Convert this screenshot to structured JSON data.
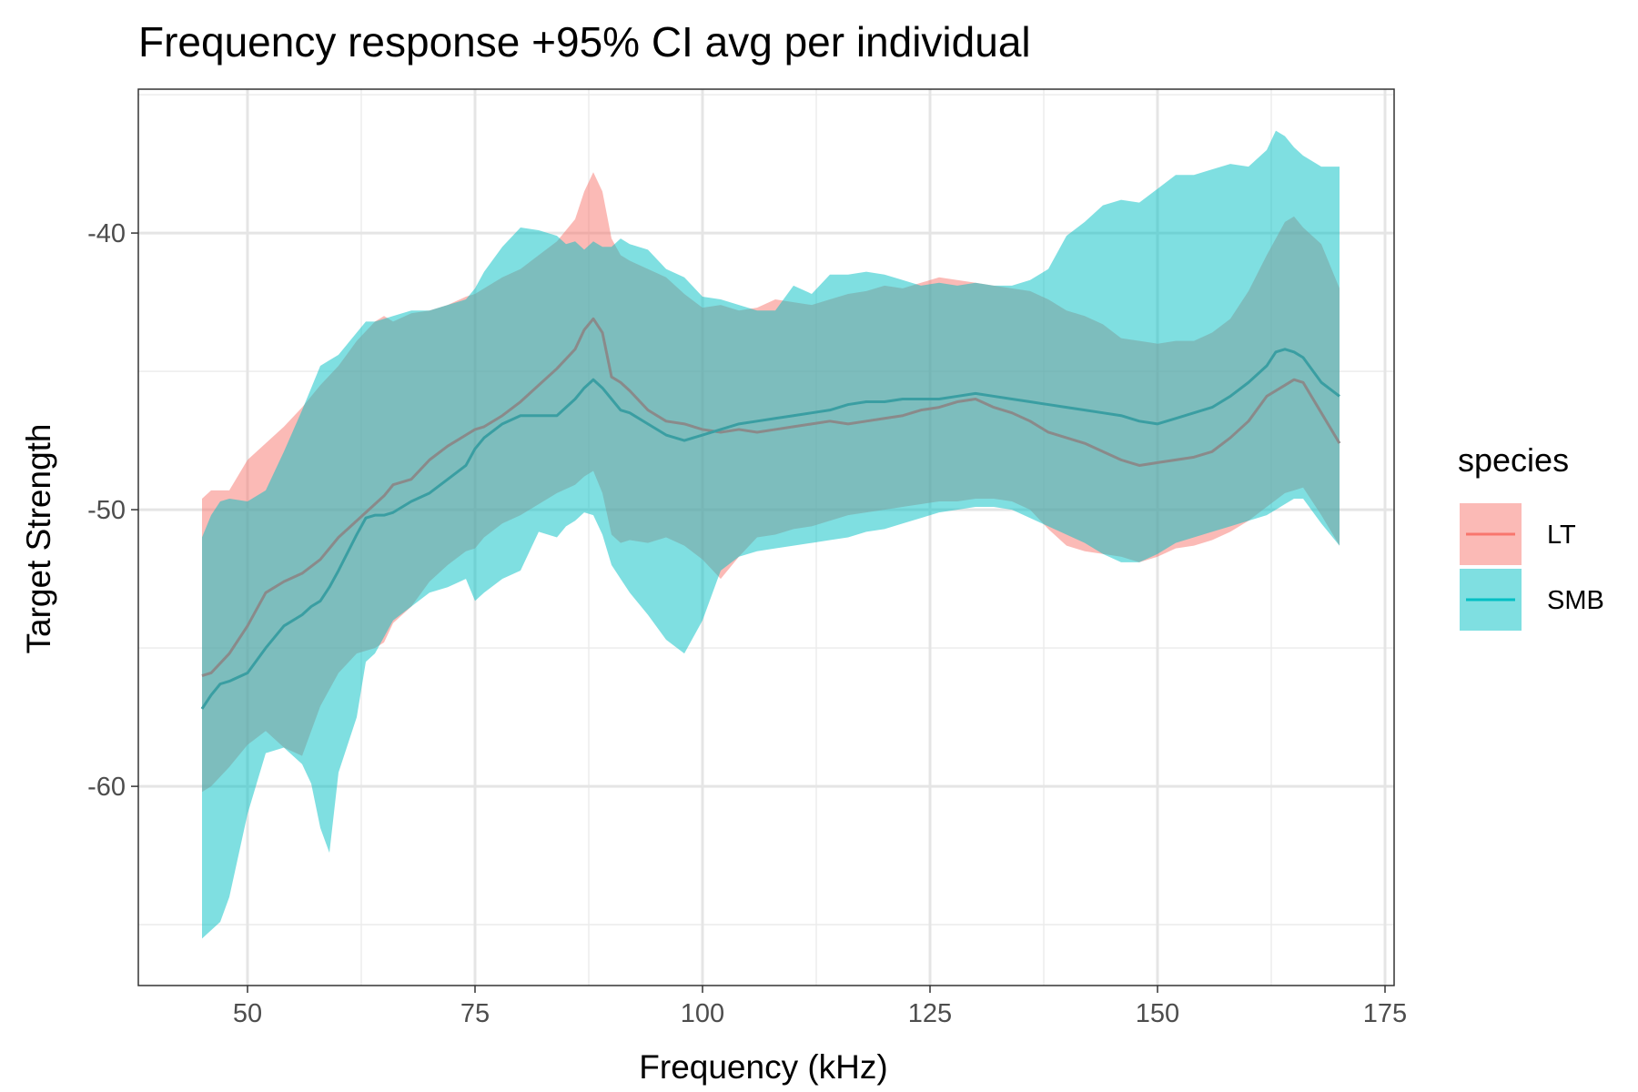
{
  "chart_data": {
    "type": "area",
    "title": "Frequency response +95% CI avg per individual",
    "xlabel": "Frequency (kHz)",
    "ylabel": "Target Strength",
    "xlim": [
      38,
      176
    ],
    "ylim": [
      -67.2,
      -34.8
    ],
    "x_ticks": [
      50,
      75,
      100,
      125,
      150,
      175
    ],
    "y_ticks": [
      -40,
      -50,
      -60
    ],
    "x_tick_labels": [
      "50",
      "75",
      "100",
      "125",
      "150",
      "175"
    ],
    "y_tick_labels": [
      "-40",
      "-50",
      "-60"
    ],
    "grid": true,
    "legend_position": "right",
    "legend": {
      "title": "species",
      "entries": [
        {
          "label": "LT",
          "fill": "#F8766D",
          "line": "#F8766D"
        },
        {
          "label": "SMB",
          "fill": "#00BFC4",
          "line": "#00BFC4"
        }
      ]
    },
    "series": [
      {
        "name": "LT",
        "color": "#F8766D",
        "x": [
          45,
          46,
          48,
          50,
          52,
          54,
          56,
          58,
          60,
          62,
          64,
          65,
          66,
          68,
          70,
          72,
          74,
          75,
          76,
          78,
          80,
          82,
          84,
          86,
          87,
          88,
          89,
          90,
          91,
          92,
          94,
          96,
          98,
          100,
          102,
          104,
          106,
          108,
          110,
          112,
          114,
          116,
          118,
          120,
          122,
          124,
          126,
          128,
          130,
          132,
          134,
          136,
          138,
          140,
          142,
          144,
          146,
          148,
          150,
          152,
          154,
          156,
          158,
          160,
          162,
          164,
          165,
          166,
          168,
          170
        ],
        "mean": [
          -56.0,
          -55.9,
          -55.2,
          -54.2,
          -53.0,
          -52.6,
          -52.3,
          -51.8,
          -51.0,
          -50.4,
          -49.8,
          -49.5,
          -49.1,
          -48.9,
          -48.2,
          -47.7,
          -47.3,
          -47.1,
          -47.0,
          -46.6,
          -46.1,
          -45.5,
          -44.9,
          -44.2,
          -43.5,
          -43.1,
          -43.6,
          -45.2,
          -45.4,
          -45.7,
          -46.4,
          -46.8,
          -46.9,
          -47.1,
          -47.2,
          -47.1,
          -47.2,
          -47.1,
          -47.0,
          -46.9,
          -46.8,
          -46.9,
          -46.8,
          -46.7,
          -46.6,
          -46.4,
          -46.3,
          -46.1,
          -46.0,
          -46.3,
          -46.5,
          -46.8,
          -47.2,
          -47.4,
          -47.6,
          -47.9,
          -48.2,
          -48.4,
          -48.3,
          -48.2,
          -48.1,
          -47.9,
          -47.4,
          -46.8,
          -45.9,
          -45.5,
          -45.3,
          -45.4,
          -46.5,
          -47.6
        ],
        "upper": [
          -49.6,
          -49.3,
          -49.3,
          -48.2,
          -47.6,
          -47.0,
          -46.3,
          -45.5,
          -44.8,
          -43.9,
          -43.2,
          -43.0,
          -43.2,
          -42.9,
          -42.8,
          -42.6,
          -42.3,
          -42.2,
          -42.0,
          -41.6,
          -41.3,
          -40.8,
          -40.3,
          -39.5,
          -38.5,
          -37.8,
          -38.5,
          -40.2,
          -40.8,
          -41.0,
          -41.3,
          -41.6,
          -42.2,
          -42.7,
          -42.6,
          -42.8,
          -42.7,
          -42.4,
          -42.5,
          -42.6,
          -42.4,
          -42.2,
          -42.1,
          -41.9,
          -42.0,
          -41.8,
          -41.6,
          -41.7,
          -41.8,
          -41.9,
          -42.0,
          -42.1,
          -42.4,
          -42.8,
          -43.0,
          -43.3,
          -43.8,
          -43.9,
          -44.0,
          -43.9,
          -43.9,
          -43.6,
          -43.1,
          -42.1,
          -40.8,
          -39.6,
          -39.4,
          -39.8,
          -40.4,
          -42.0
        ],
        "lower": [
          -60.2,
          -60.0,
          -59.3,
          -58.5,
          -58.0,
          -58.6,
          -58.9,
          -57.1,
          -55.9,
          -55.2,
          -55.0,
          -54.8,
          -54.1,
          -53.5,
          -52.6,
          -52.0,
          -51.5,
          -51.4,
          -51.0,
          -50.5,
          -50.2,
          -49.8,
          -49.4,
          -49.1,
          -48.8,
          -48.6,
          -49.4,
          -50.9,
          -51.2,
          -51.1,
          -51.2,
          -51.0,
          -51.3,
          -51.8,
          -52.5,
          -51.7,
          -51.0,
          -50.9,
          -50.7,
          -50.6,
          -50.4,
          -50.2,
          -50.1,
          -50.0,
          -49.9,
          -49.8,
          -49.7,
          -49.7,
          -49.6,
          -49.6,
          -49.7,
          -50.0,
          -50.7,
          -51.3,
          -51.5,
          -51.6,
          -51.7,
          -51.9,
          -51.7,
          -51.4,
          -51.3,
          -51.1,
          -50.8,
          -50.4,
          -49.9,
          -49.4,
          -49.3,
          -49.2,
          -50.2,
          -51.3
        ]
      },
      {
        "name": "SMB",
        "color": "#00BFC4",
        "x": [
          45,
          46,
          47,
          48,
          50,
          52,
          54,
          56,
          57,
          58,
          59,
          60,
          62,
          63,
          64,
          65,
          66,
          68,
          70,
          72,
          74,
          75,
          76,
          78,
          80,
          82,
          84,
          85,
          86,
          87,
          88,
          89,
          90,
          91,
          92,
          94,
          96,
          98,
          100,
          102,
          104,
          106,
          108,
          110,
          112,
          114,
          116,
          118,
          120,
          122,
          124,
          126,
          128,
          130,
          132,
          134,
          136,
          138,
          140,
          142,
          144,
          146,
          148,
          150,
          152,
          154,
          156,
          158,
          160,
          162,
          163,
          164,
          165,
          166,
          168,
          170
        ],
        "mean": [
          -57.2,
          -56.7,
          -56.3,
          -56.2,
          -55.9,
          -55.0,
          -54.2,
          -53.8,
          -53.5,
          -53.3,
          -52.8,
          -52.2,
          -50.9,
          -50.3,
          -50.2,
          -50.2,
          -50.1,
          -49.7,
          -49.4,
          -48.9,
          -48.4,
          -47.8,
          -47.4,
          -46.9,
          -46.6,
          -46.6,
          -46.6,
          -46.3,
          -46.0,
          -45.6,
          -45.3,
          -45.6,
          -46.0,
          -46.4,
          -46.5,
          -46.9,
          -47.3,
          -47.5,
          -47.3,
          -47.1,
          -46.9,
          -46.8,
          -46.7,
          -46.6,
          -46.5,
          -46.4,
          -46.2,
          -46.1,
          -46.1,
          -46.0,
          -46.0,
          -46.0,
          -45.9,
          -45.8,
          -45.9,
          -46.0,
          -46.1,
          -46.2,
          -46.3,
          -46.4,
          -46.5,
          -46.6,
          -46.8,
          -46.9,
          -46.7,
          -46.5,
          -46.3,
          -45.9,
          -45.4,
          -44.8,
          -44.3,
          -44.2,
          -44.3,
          -44.5,
          -45.4,
          -45.9
        ],
        "upper": [
          -51.0,
          -50.2,
          -49.7,
          -49.6,
          -49.7,
          -49.3,
          -47.9,
          -46.4,
          -45.6,
          -44.8,
          -44.6,
          -44.4,
          -43.6,
          -43.2,
          -43.2,
          -43.1,
          -43.0,
          -42.8,
          -42.8,
          -42.6,
          -42.4,
          -42.0,
          -41.4,
          -40.5,
          -39.8,
          -39.9,
          -40.1,
          -40.4,
          -40.3,
          -40.6,
          -40.3,
          -40.5,
          -40.5,
          -40.2,
          -40.4,
          -40.6,
          -41.3,
          -41.6,
          -42.3,
          -42.4,
          -42.6,
          -42.8,
          -42.8,
          -41.9,
          -42.2,
          -41.5,
          -41.5,
          -41.4,
          -41.5,
          -41.7,
          -41.9,
          -41.8,
          -41.9,
          -41.8,
          -41.9,
          -41.9,
          -41.7,
          -41.3,
          -40.1,
          -39.6,
          -39.0,
          -38.8,
          -38.9,
          -38.4,
          -37.9,
          -37.9,
          -37.7,
          -37.5,
          -37.6,
          -37.0,
          -36.3,
          -36.5,
          -36.9,
          -37.2,
          -37.6,
          -37.6
        ],
        "lower": [
          -65.5,
          -65.2,
          -64.9,
          -64.0,
          -61.0,
          -58.8,
          -58.6,
          -59.2,
          -59.9,
          -61.5,
          -62.4,
          -59.5,
          -57.5,
          -55.5,
          -55.2,
          -54.6,
          -54.0,
          -53.5,
          -53.0,
          -52.8,
          -52.5,
          -53.3,
          -53.0,
          -52.5,
          -52.2,
          -50.8,
          -51.0,
          -50.6,
          -50.4,
          -50.1,
          -50.2,
          -50.9,
          -52.0,
          -52.5,
          -53.0,
          -53.8,
          -54.7,
          -55.2,
          -54.0,
          -52.2,
          -51.7,
          -51.5,
          -51.4,
          -51.3,
          -51.2,
          -51.1,
          -51.0,
          -50.8,
          -50.7,
          -50.5,
          -50.3,
          -50.1,
          -50.0,
          -49.9,
          -49.9,
          -50.0,
          -50.3,
          -50.6,
          -50.9,
          -51.2,
          -51.6,
          -51.9,
          -51.9,
          -51.6,
          -51.2,
          -51.0,
          -50.8,
          -50.6,
          -50.4,
          -50.2,
          -50.0,
          -49.8,
          -49.6,
          -49.6,
          -50.5,
          -51.3
        ]
      }
    ]
  }
}
